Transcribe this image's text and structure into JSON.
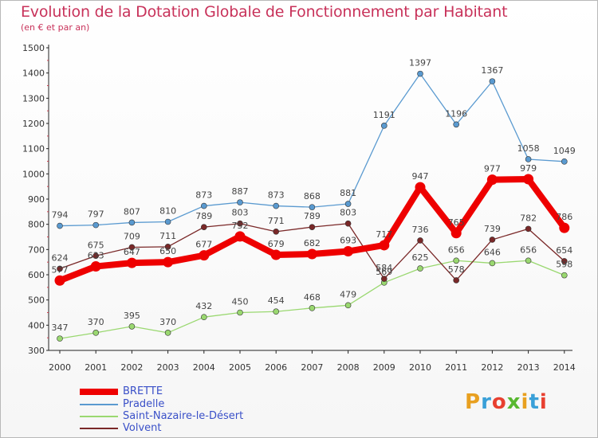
{
  "title": "Evolution de la Dotation Globale de Fonctionnement par Habitant",
  "subtitle": "(en € et par an)",
  "logo": {
    "text": "Proxiti",
    "colors": [
      "#e8a020",
      "#3aa0d8",
      "#e84030",
      "#58b830",
      "#e8a020",
      "#3aa0d8",
      "#e84030"
    ]
  },
  "chart_data": {
    "type": "line",
    "title": "Evolution de la Dotation Globale de Fonctionnement par Habitant",
    "subtitle": "(en € et par an)",
    "x": [
      "2000",
      "2001",
      "2002",
      "2003",
      "2004",
      "2005",
      "2006",
      "2007",
      "2008",
      "2009",
      "2010",
      "2011",
      "2012",
      "2013",
      "2014"
    ],
    "yticks": [
      "300",
      "400",
      "500",
      "600",
      "700",
      "800",
      "900",
      "1000",
      "1100",
      "1200",
      "1300",
      "1400",
      "1500"
    ],
    "ylim": [
      300,
      1500
    ],
    "grid": false,
    "legend_position": "bottom-left",
    "series": [
      {
        "name": "Pradelle",
        "color": "#5a9ad0",
        "values": [
          794,
          797,
          807,
          810,
          873,
          887,
          873,
          868,
          881,
          1191,
          1397,
          1196,
          1367,
          1058,
          1049
        ],
        "labels": [
          "794",
          "797",
          "807",
          "810",
          "873",
          "887",
          "873",
          "868",
          "881",
          "1191",
          "1397",
          "1196",
          "1367",
          "1058",
          "1049"
        ]
      },
      {
        "name": "Saint-Nazaire-le-Désert",
        "color": "#9ad870",
        "values": [
          347,
          370,
          395,
          370,
          432,
          450,
          454,
          468,
          479,
          569,
          625,
          656,
          646,
          656,
          598
        ],
        "labels": [
          "347",
          "370",
          "395",
          "370",
          "432",
          "450",
          "454",
          "468",
          "479",
          "569",
          "625",
          "656",
          "646",
          "656",
          "598"
        ]
      },
      {
        "name": "Volvent",
        "color": "#7a2828",
        "values": [
          624,
          675,
          709,
          711,
          789,
          803,
          771,
          789,
          803,
          584,
          736,
          578,
          739,
          782,
          654
        ],
        "labels": [
          "624",
          "675",
          "709",
          "711",
          "789",
          "803",
          "771",
          "789",
          "803",
          "584",
          "736",
          "578",
          "739",
          "782",
          "654"
        ]
      },
      {
        "name": "BRETTE",
        "color": "#ee0000",
        "values": [
          577,
          633,
          647,
          650,
          677,
          752,
          679,
          682,
          693,
          717,
          947,
          765,
          977,
          979,
          786
        ],
        "labels": [
          "577",
          "633",
          "647",
          "650",
          "677",
          "752",
          "679",
          "682",
          "693",
          "717",
          "947",
          "765",
          "977",
          "979",
          "786"
        ]
      }
    ]
  },
  "legend": [
    {
      "name": "BRETTE",
      "color": "#ee0000",
      "thick": true
    },
    {
      "name": "Pradelle",
      "color": "#5a9ad0",
      "thick": false
    },
    {
      "name": "Saint-Nazaire-le-Désert",
      "color": "#9ad870",
      "thick": false
    },
    {
      "name": "Volvent",
      "color": "#7a2828",
      "thick": false
    }
  ]
}
